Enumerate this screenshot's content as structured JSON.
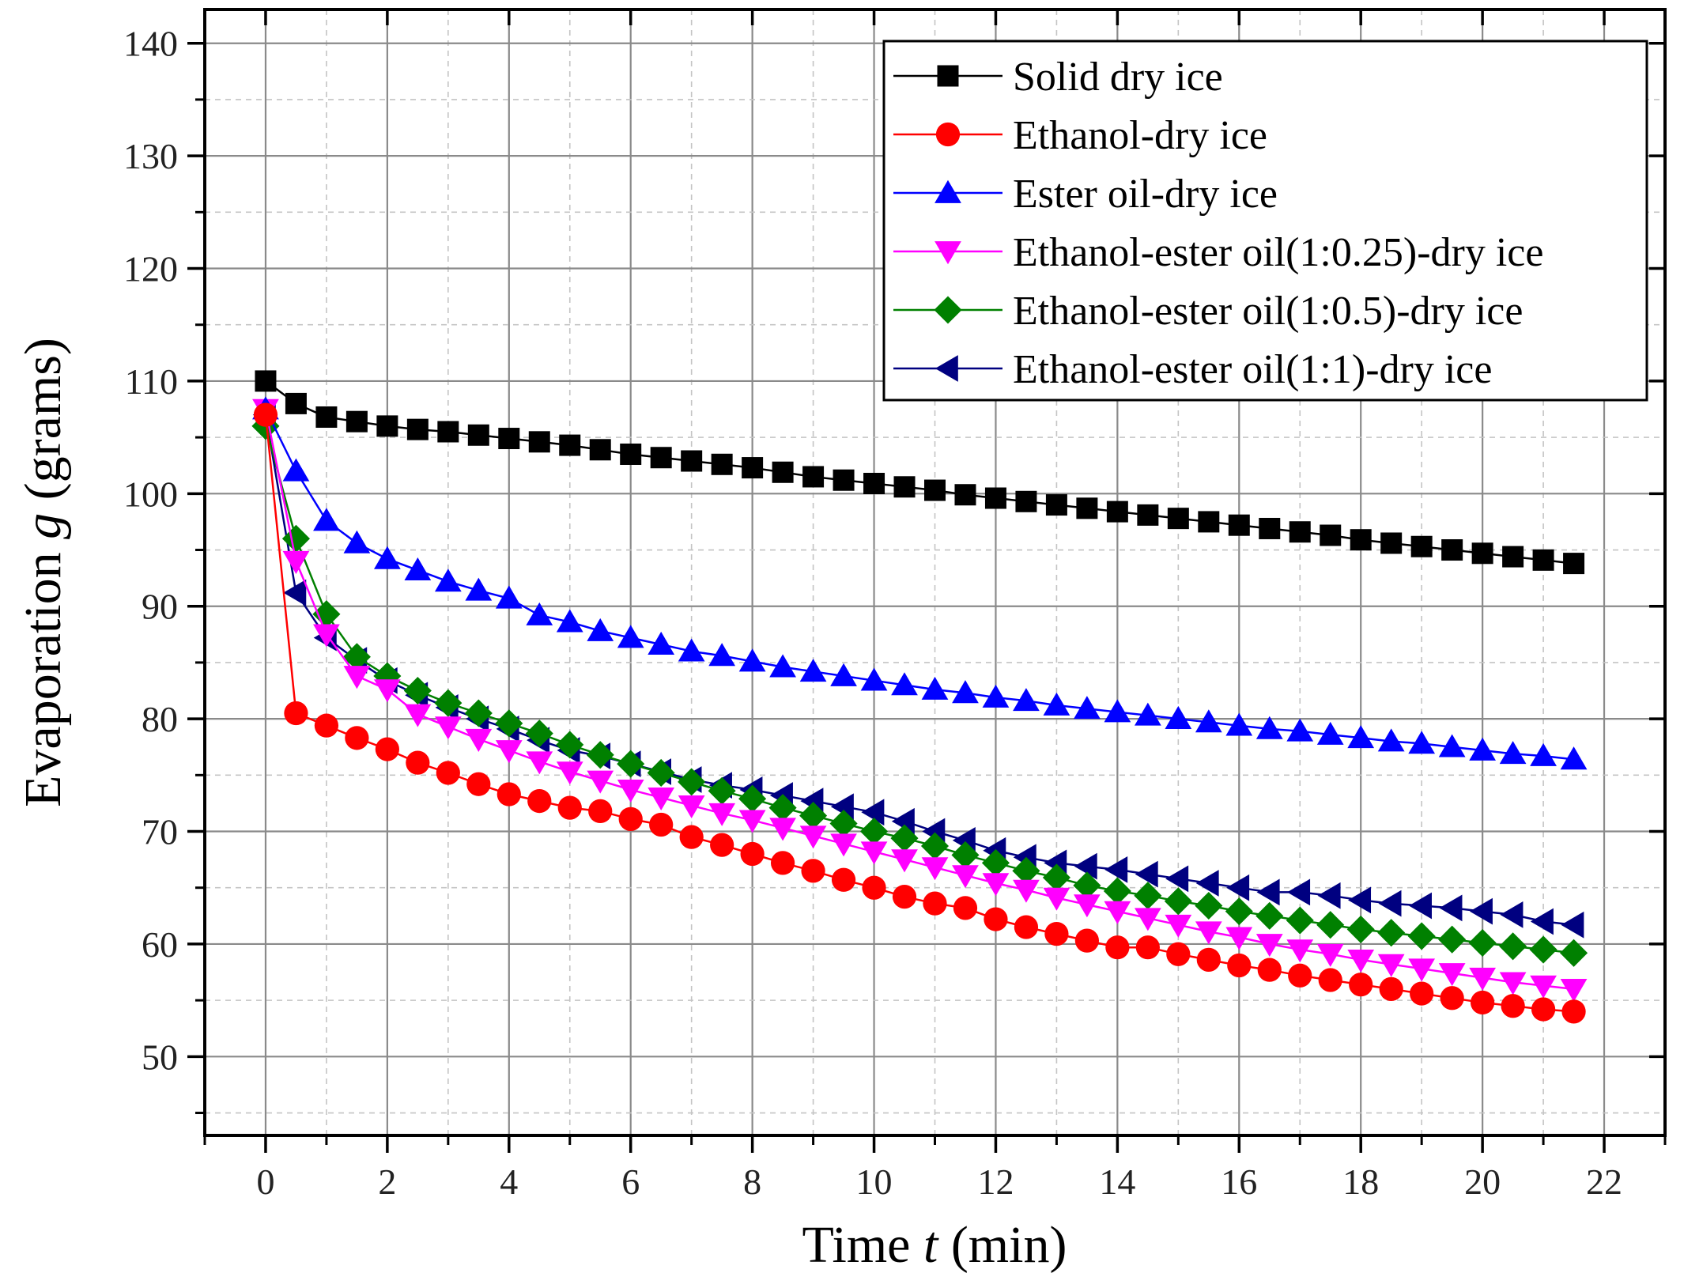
{
  "chart_data": {
    "type": "line",
    "title": "",
    "xlabel": {
      "prefix": "Time ",
      "variable": "t",
      "suffix": " (min)"
    },
    "ylabel": {
      "prefix": "Evaporation ",
      "variable": "g",
      "suffix": " (grams)"
    },
    "xlim": [
      -1,
      23
    ],
    "ylim": [
      43,
      143
    ],
    "xticks": [
      0,
      2,
      4,
      6,
      8,
      10,
      12,
      14,
      16,
      18,
      20,
      22
    ],
    "yticks": [
      50,
      60,
      70,
      80,
      90,
      100,
      110,
      120,
      130,
      140
    ],
    "grid": true,
    "legend_position": "top-right",
    "x": [
      0,
      0.5,
      1,
      1.5,
      2,
      2.5,
      3,
      3.5,
      4,
      4.5,
      5,
      5.5,
      6,
      6.5,
      7,
      7.5,
      8,
      8.5,
      9,
      9.5,
      10,
      10.5,
      11,
      11.5,
      12,
      12.5,
      13,
      13.5,
      14,
      14.5,
      15,
      15.5,
      16,
      16.5,
      17,
      17.5,
      18,
      18.5,
      19,
      19.5,
      20,
      20.5,
      21,
      21.5
    ],
    "series": [
      {
        "name": "Solid dry ice",
        "marker": "square",
        "color": "#000000",
        "values": [
          110.0,
          108.0,
          106.8,
          106.4,
          106.0,
          105.7,
          105.5,
          105.2,
          104.9,
          104.6,
          104.3,
          103.9,
          103.5,
          103.2,
          102.9,
          102.6,
          102.3,
          101.9,
          101.5,
          101.2,
          100.9,
          100.6,
          100.3,
          99.9,
          99.6,
          99.3,
          99.0,
          98.7,
          98.4,
          98.1,
          97.8,
          97.5,
          97.2,
          96.9,
          96.6,
          96.3,
          95.9,
          95.6,
          95.3,
          95.0,
          94.7,
          94.4,
          94.1,
          93.8
        ]
      },
      {
        "name": "Ethanol-dry ice",
        "marker": "circle",
        "color": "#ff0000",
        "values": [
          107.0,
          80.5,
          79.4,
          78.3,
          77.3,
          76.1,
          75.2,
          74.2,
          73.3,
          72.7,
          72.1,
          71.8,
          71.1,
          70.6,
          69.5,
          68.8,
          68.0,
          67.2,
          66.5,
          65.7,
          65.0,
          64.2,
          63.6,
          63.2,
          62.2,
          61.5,
          60.9,
          60.3,
          59.7,
          59.7,
          59.1,
          58.6,
          58.1,
          57.7,
          57.2,
          56.8,
          56.4,
          56.0,
          55.6,
          55.2,
          54.8,
          54.5,
          54.2,
          54.0
        ]
      },
      {
        "name": "Ester oil-dry ice",
        "marker": "triangle-up",
        "color": "#0000ff",
        "values": [
          107.5,
          102.0,
          97.6,
          95.6,
          94.2,
          93.2,
          92.2,
          91.4,
          90.7,
          89.2,
          88.6,
          87.8,
          87.2,
          86.6,
          86.0,
          85.6,
          85.1,
          84.6,
          84.2,
          83.8,
          83.4,
          83.0,
          82.6,
          82.3,
          81.9,
          81.6,
          81.2,
          80.9,
          80.6,
          80.3,
          80.0,
          79.7,
          79.4,
          79.1,
          78.9,
          78.6,
          78.3,
          78.0,
          77.8,
          77.5,
          77.2,
          76.9,
          76.7,
          76.4
        ]
      },
      {
        "name": "Ethanol-ester oil(1:0.25)-dry ice",
        "marker": "triangle-down",
        "color": "#ff00ff",
        "values": [
          107.5,
          94.0,
          87.5,
          83.8,
          82.6,
          80.4,
          79.3,
          78.2,
          77.2,
          76.2,
          75.3,
          74.5,
          73.7,
          73.0,
          72.3,
          71.6,
          71.0,
          70.3,
          69.6,
          68.9,
          68.2,
          67.5,
          66.8,
          66.1,
          65.4,
          64.8,
          64.1,
          63.5,
          62.9,
          62.3,
          61.7,
          61.1,
          60.6,
          60.0,
          59.5,
          59.1,
          58.6,
          58.2,
          57.8,
          57.4,
          57.0,
          56.6,
          56.3,
          56.0
        ]
      },
      {
        "name": "Ethanol-ester oil(1:0.5)-dry ice",
        "marker": "diamond",
        "color": "#008000",
        "values": [
          106.0,
          96.0,
          89.3,
          85.5,
          83.8,
          82.5,
          81.4,
          80.5,
          79.6,
          78.7,
          77.7,
          76.8,
          76.0,
          75.2,
          74.4,
          73.6,
          72.9,
          72.1,
          71.4,
          70.7,
          70.0,
          69.4,
          68.7,
          67.9,
          67.2,
          66.5,
          65.9,
          65.2,
          64.7,
          64.3,
          63.8,
          63.4,
          62.9,
          62.5,
          62.1,
          61.7,
          61.3,
          61.0,
          60.7,
          60.4,
          60.1,
          59.8,
          59.5,
          59.2
        ]
      },
      {
        "name": "Ethanol-ester oil(1:1)-dry ice",
        "marker": "triangle-left",
        "color": "#000080",
        "values": [
          107.0,
          91.2,
          87.2,
          85.2,
          83.4,
          82.1,
          81.0,
          80.0,
          79.1,
          78.1,
          77.2,
          76.7,
          76.0,
          75.3,
          74.6,
          74.1,
          73.7,
          73.2,
          72.7,
          72.2,
          71.7,
          70.9,
          70.0,
          69.2,
          68.3,
          67.7,
          67.2,
          66.9,
          66.6,
          66.2,
          65.8,
          65.4,
          65.0,
          64.6,
          64.6,
          64.3,
          63.9,
          63.6,
          63.4,
          63.2,
          62.9,
          62.6,
          62.0,
          61.7
        ]
      }
    ]
  }
}
